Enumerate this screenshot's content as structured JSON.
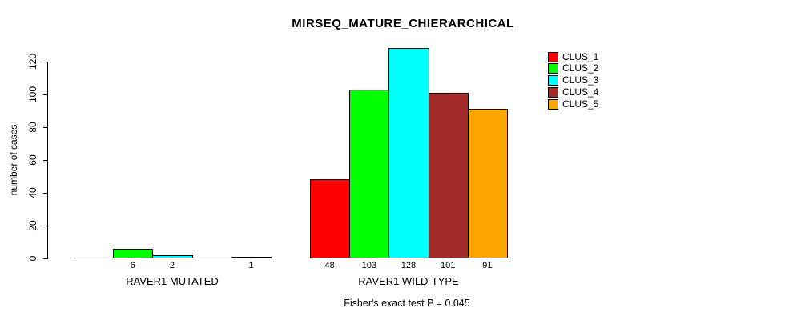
{
  "chart_data": {
    "type": "bar",
    "title": "MIRSEQ_MATURE_CHIERARCHICAL",
    "xlabel": "",
    "ylabel": "number of cases",
    "ylim": [
      0,
      120
    ],
    "yticks": [
      0,
      20,
      40,
      60,
      80,
      100,
      120
    ],
    "grid": false,
    "legend_position": "top-right",
    "categories": [
      "RAVER1 MUTATED",
      "RAVER1 WILD-TYPE"
    ],
    "series": [
      {
        "name": "CLUS_1",
        "color": "#FF0000",
        "values": [
          0,
          48
        ]
      },
      {
        "name": "CLUS_2",
        "color": "#00FF00",
        "values": [
          6,
          103
        ]
      },
      {
        "name": "CLUS_3",
        "color": "#00FFFF",
        "values": [
          2,
          128
        ]
      },
      {
        "name": "CLUS_4",
        "color": "#A52A2A",
        "values": [
          0,
          101
        ]
      },
      {
        "name": "CLUS_5",
        "color": "#FFA500",
        "values": [
          1,
          91
        ]
      }
    ],
    "bar_value_labels_shown": [
      "6",
      "2",
      "1",
      "48",
      "103",
      "128",
      "101",
      "91"
    ],
    "annotation": "Fisher's exact test P = 0.045"
  }
}
